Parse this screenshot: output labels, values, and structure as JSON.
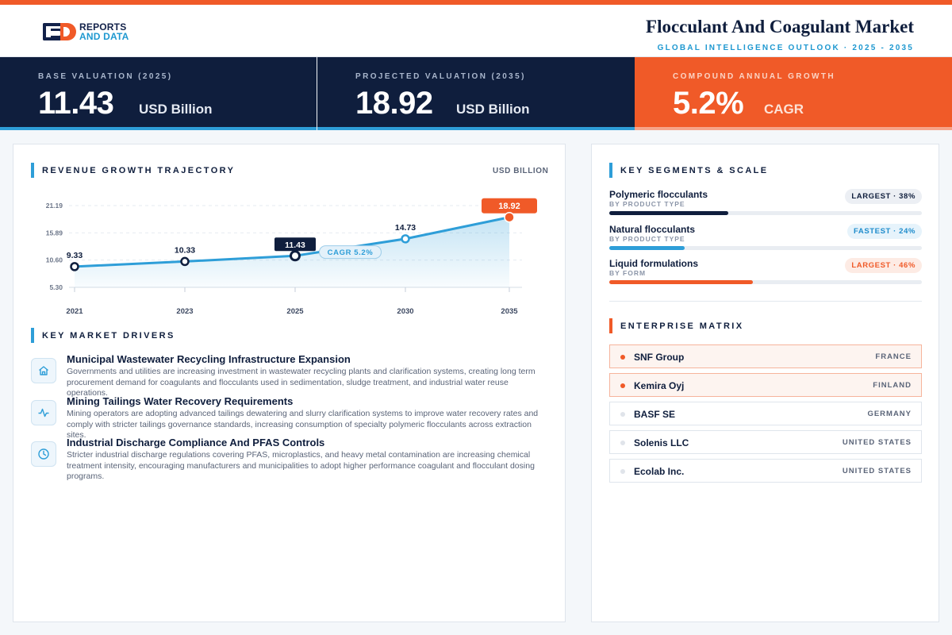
{
  "brand": {
    "line1": "REPORTS",
    "line2": "AND DATA"
  },
  "header": {
    "title": "Flocculant And Coagulant Market",
    "subtitle": "GLOBAL INTELLIGENCE OUTLOOK · 2025 - 2035"
  },
  "kpis": [
    {
      "label": "BASE VALUATION (2025)",
      "value": "11.43",
      "unit": "USD Billion"
    },
    {
      "label": "PROJECTED VALUATION (2035)",
      "value": "18.92",
      "unit": "USD Billion"
    },
    {
      "label": "COMPOUND ANNUAL GROWTH",
      "value": "5.2%",
      "unit": "CAGR"
    }
  ],
  "revenue": {
    "title": "REVENUE GROWTH TRAJECTORY",
    "units": "USD BILLION"
  },
  "chart_data": {
    "type": "area",
    "categories": [
      "2021",
      "2023",
      "2025",
      "2030",
      "2035"
    ],
    "values": [
      9.33,
      10.33,
      11.43,
      14.73,
      18.92
    ],
    "value_labels": [
      "9.33",
      "10.33",
      "11.43",
      "14.73",
      "18.92"
    ],
    "y_ticks": [
      5.3,
      10.6,
      15.89,
      21.19
    ],
    "y_tick_labels": [
      "5.30",
      "10.60",
      "15.89",
      "21.19"
    ],
    "ylim": [
      5.3,
      21.19
    ],
    "annotation": "CAGR 5.2%",
    "highlight": {
      "base_index": 2,
      "projected_index": 4
    },
    "colors": {
      "line": "#2e9ed8",
      "base": "#0f1e3d",
      "projected": "#f05a28"
    },
    "grid": true
  },
  "drivers": {
    "title": "KEY MARKET DRIVERS",
    "items": [
      {
        "icon": "home-icon",
        "title": "Municipal Wastewater Recycling Infrastructure Expansion",
        "body": "Governments and utilities are increasing investment in wastewater recycling plants and clarification systems, creating long term procurement demand for coagulants and flocculants used in sedimentation, sludge treatment, and industrial water reuse operations."
      },
      {
        "icon": "activity-icon",
        "title": "Mining Tailings Water Recovery Requirements",
        "body": "Mining operators are adopting advanced tailings dewatering and slurry clarification systems to improve water recovery rates and comply with stricter tailings governance standards, increasing consumption of specialty polymeric flocculants across extraction sites."
      },
      {
        "icon": "clock-icon",
        "title": "Industrial Discharge Compliance And PFAS Controls",
        "body": "Stricter industrial discharge regulations covering PFAS, microplastics, and heavy metal contamination are increasing chemical treatment intensity, encouraging manufacturers and municipalities to adopt higher performance coagulant and flocculant dosing programs."
      }
    ]
  },
  "segments": {
    "title": "KEY SEGMENTS & SCALE",
    "items": [
      {
        "name": "Polymeric flocculants",
        "category": "BY PRODUCT TYPE",
        "badge": "LARGEST · 38%",
        "share": 38,
        "color": "#0f1e3d",
        "badge_bg": "#eceff4",
        "badge_color": "#0f1e3d"
      },
      {
        "name": "Natural flocculants",
        "category": "BY PRODUCT TYPE",
        "badge": "FASTEST · 24%",
        "share": 24,
        "color": "#2e9ed8",
        "badge_bg": "#e6f3fb",
        "badge_color": "#1e8ccc"
      },
      {
        "name": "Liquid formulations",
        "category": "BY FORM",
        "badge": "LARGEST · 46%",
        "share": 46,
        "color": "#f05a28",
        "badge_bg": "#fdebe4",
        "badge_color": "#f05a28"
      }
    ]
  },
  "matrix": {
    "title": "ENTERPRISE MATRIX",
    "items": [
      {
        "name": "SNF Group",
        "country": "FRANCE",
        "highlight": true
      },
      {
        "name": "Kemira Oyj",
        "country": "FINLAND",
        "highlight": true
      },
      {
        "name": "BASF SE",
        "country": "GERMANY",
        "highlight": false
      },
      {
        "name": "Solenis LLC",
        "country": "UNITED STATES",
        "highlight": false
      },
      {
        "name": "Ecolab Inc.",
        "country": "UNITED STATES",
        "highlight": false
      }
    ]
  }
}
